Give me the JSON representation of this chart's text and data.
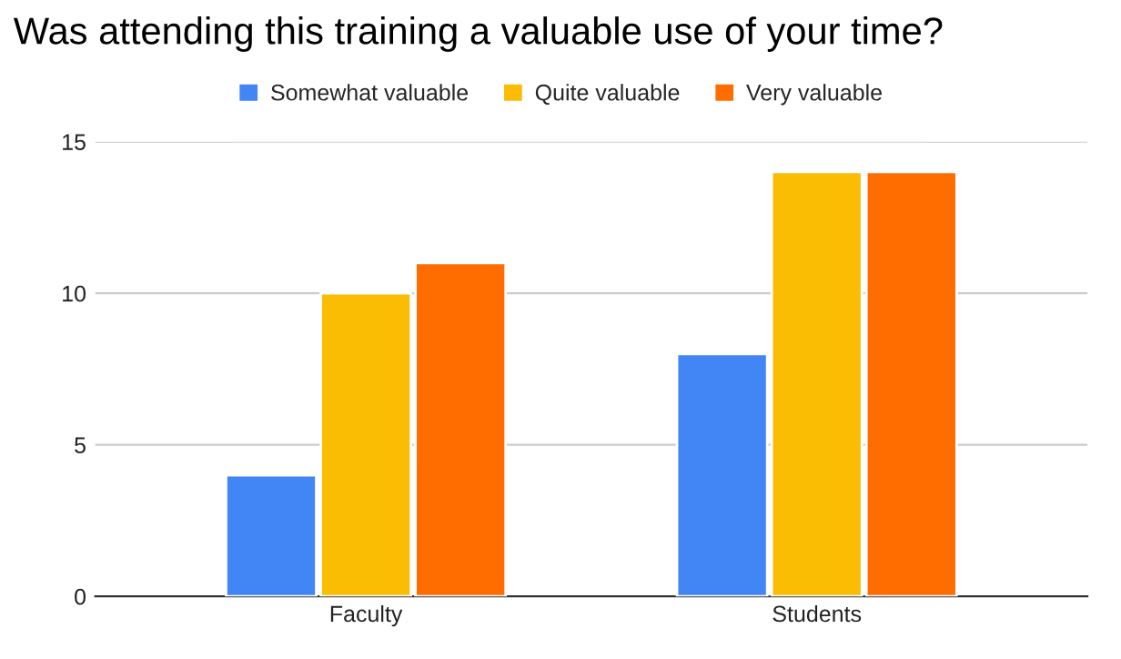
{
  "chart_data": {
    "type": "bar",
    "title": "Was attending this training a valuable use of your time?",
    "categories": [
      "Faculty",
      "Students"
    ],
    "series": [
      {
        "name": "Somewhat valuable",
        "color": "#4285f4",
        "values": [
          4,
          8
        ]
      },
      {
        "name": "Quite valuable",
        "color": "#fbbc04",
        "values": [
          10,
          14
        ]
      },
      {
        "name": "Very valuable",
        "color": "#ff6d01",
        "values": [
          11,
          14
        ]
      }
    ],
    "ylim": [
      0,
      15
    ],
    "yticks": [
      0,
      5,
      10,
      15
    ],
    "grid": "y",
    "legend": "top"
  }
}
